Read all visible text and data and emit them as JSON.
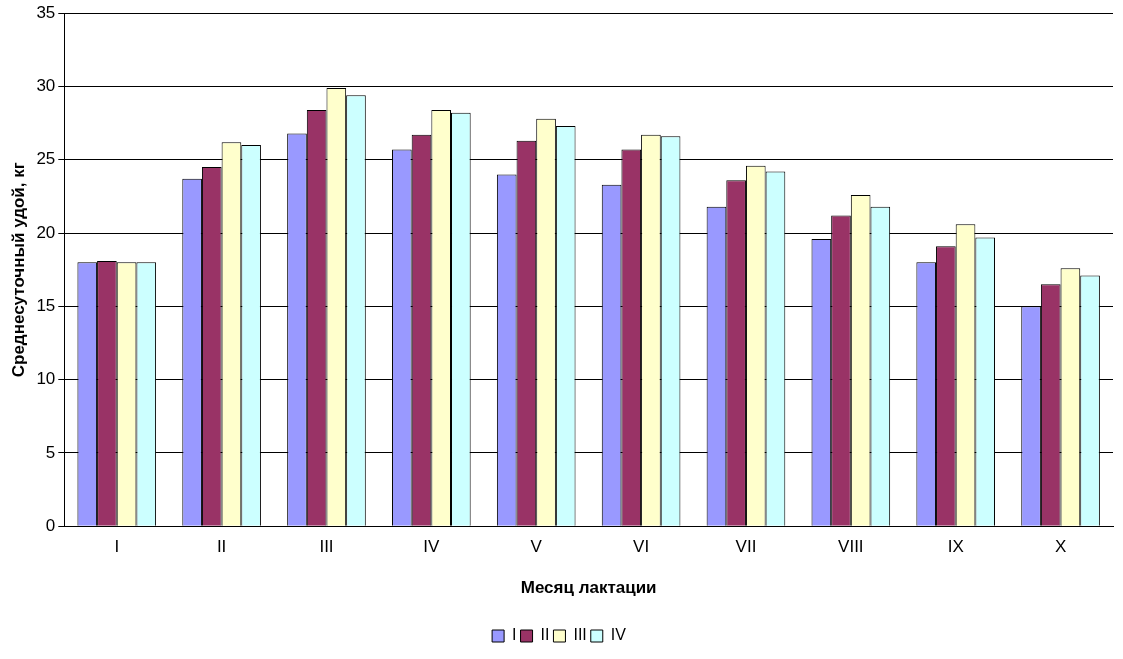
{
  "chart_data": {
    "type": "bar",
    "xlabel": "Месяц лактации",
    "ylabel": "Среднесуточный удой, кг",
    "categories": [
      "I",
      "II",
      "III",
      "IV",
      "V",
      "VI",
      "VII",
      "VIII",
      "IX",
      "X"
    ],
    "series": [
      {
        "name": "I",
        "color": "#9999ff",
        "values": [
          18,
          23.7,
          26.8,
          25.7,
          24,
          23.3,
          21.8,
          19.6,
          18,
          15
        ]
      },
      {
        "name": "II",
        "color": "#993366",
        "values": [
          18.1,
          24.5,
          28.4,
          26.7,
          26.3,
          25.7,
          23.6,
          21.2,
          19.1,
          16.5
        ]
      },
      {
        "name": "III",
        "color": "#ffffcc",
        "values": [
          18,
          26.2,
          29.9,
          28.4,
          27.8,
          26.7,
          24.6,
          22.6,
          20.6,
          17.6
        ]
      },
      {
        "name": "IV",
        "color": "#ccffff",
        "values": [
          18,
          26,
          29.4,
          28.2,
          27.3,
          26.6,
          24.2,
          21.8,
          19.7,
          17.1
        ]
      }
    ],
    "ylim": [
      0,
      35
    ],
    "yticks": [
      0,
      5,
      10,
      15,
      20,
      25,
      30,
      35
    ],
    "grid": "y",
    "legend": "bottom"
  }
}
